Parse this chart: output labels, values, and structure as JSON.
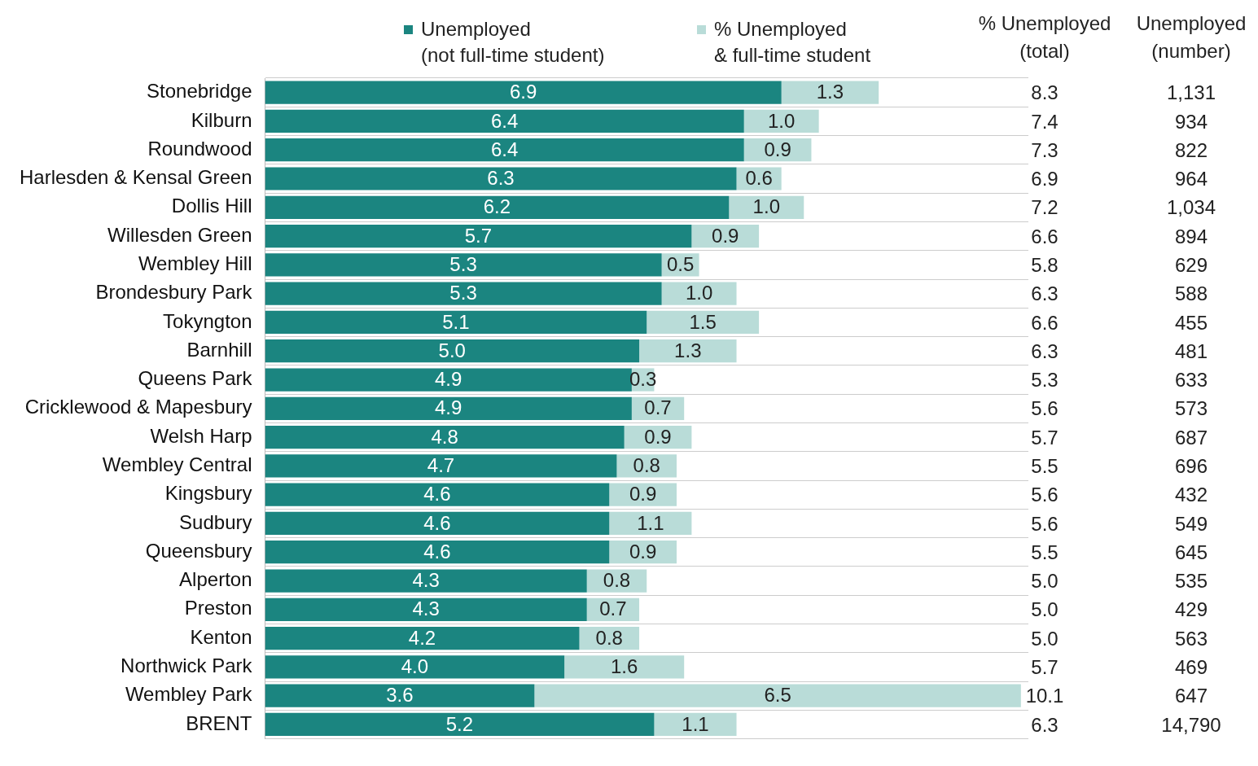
{
  "chart_data": {
    "type": "bar",
    "orientation": "horizontal",
    "stacked": true,
    "legend": "top",
    "grid": "y",
    "tick_labels": "y",
    "xlim": [
      0,
      10.2
    ],
    "categories": [
      "Stonebridge",
      "Kilburn",
      "Roundwood",
      "Harlesden & Kensal Green",
      "Dollis Hill",
      "Willesden Green",
      "Wembley Hill",
      "Brondesbury Park",
      "Tokyngton",
      "Barnhill",
      "Queens Park",
      "Cricklewood & Mapesbury",
      "Welsh Harp",
      "Wembley Central",
      "Kingsbury",
      "Sudbury",
      "Queensbury",
      "Alperton",
      "Preston",
      "Kenton",
      "Northwick Park",
      "Wembley Park",
      "BRENT"
    ],
    "series": [
      {
        "name": "Unemployed\n(not full-time student)",
        "color": "#1b8580",
        "values": [
          6.9,
          6.4,
          6.4,
          6.3,
          6.2,
          5.7,
          5.3,
          5.3,
          5.1,
          5.0,
          4.9,
          4.9,
          4.8,
          4.7,
          4.6,
          4.6,
          4.6,
          4.3,
          4.3,
          4.2,
          4.0,
          3.6,
          5.2
        ],
        "value_labels": [
          "6.9",
          "6.4",
          "6.4",
          "6.3",
          "6.2",
          "5.7",
          "5.3",
          "5.3",
          "5.1",
          "5.0",
          "4.9",
          "4.9",
          "4.8",
          "4.7",
          "4.6",
          "4.6",
          "4.6",
          "4.3",
          "4.3",
          "4.2",
          "4.0",
          "3.6",
          "5.2"
        ]
      },
      {
        "name": "% Unemployed\n& full-time student",
        "color": "#b9dcd8",
        "values": [
          1.3,
          1.0,
          0.9,
          0.6,
          1.0,
          0.9,
          0.5,
          1.0,
          1.5,
          1.3,
          0.3,
          0.7,
          0.9,
          0.8,
          0.9,
          1.1,
          0.9,
          0.8,
          0.7,
          0.8,
          1.6,
          6.5,
          1.1
        ],
        "value_labels": [
          "1.3",
          "1.0",
          "0.9",
          "0.6",
          "1.0",
          "0.9",
          "0.5",
          "1.0",
          "1.5",
          "1.3",
          "0.3",
          "0.7",
          "0.9",
          "0.8",
          "0.9",
          "1.1",
          "0.9",
          "0.8",
          "0.7",
          "0.8",
          "1.6",
          "6.5",
          "1.1"
        ]
      }
    ],
    "annotations": [
      "% Unemployed\n(total)",
      "Unemployed\n(number)",
      "8.3",
      "1,131",
      "7.4",
      "934",
      "7.3",
      "822",
      "6.9",
      "964",
      "7.2",
      "1,034",
      "6.6",
      "894",
      "5.8",
      "629",
      "6.3",
      "588",
      "6.6",
      "455",
      "6.3",
      "481",
      "5.3",
      "633",
      "5.6",
      "573",
      "5.7",
      "687",
      "5.5",
      "696",
      "5.6",
      "432",
      "5.6",
      "549",
      "5.5",
      "645",
      "5.0",
      "535",
      "5.0",
      "429",
      "5.0",
      "563",
      "5.7",
      "469",
      "10.1",
      "647",
      "6.3",
      "14,790"
    ]
  }
}
